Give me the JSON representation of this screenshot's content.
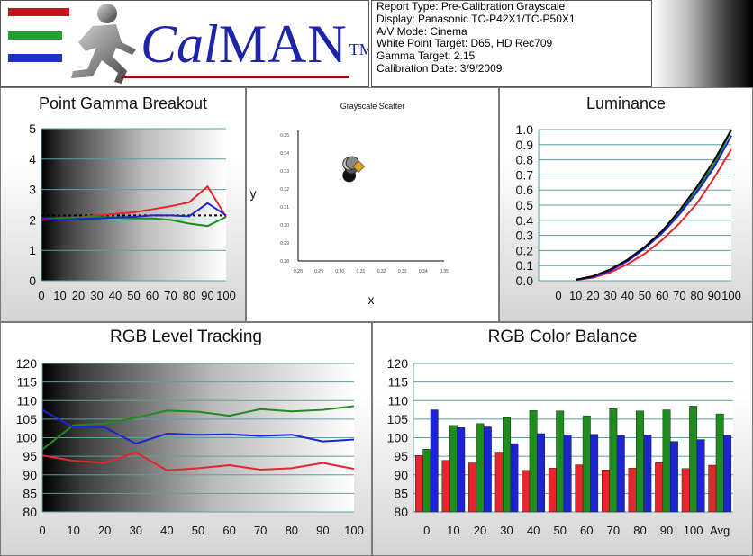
{
  "header": {
    "logo": {
      "brand_prefix": "Cal",
      "brand_suffix": "MAN",
      "trademark": "TM",
      "stripe_colors": [
        "#c0151b",
        "#22a22d",
        "#1f31b8"
      ],
      "brand_color": "#1e24a8"
    },
    "report_lines": [
      "Report Type: Pre-Calibration Grayscale",
      "Display: Panasonic TC-P42X1/TC-P50X1",
      "A/V Mode: Cinema",
      "White Point Target: D65, HD Rec709",
      "Gamma Target: 2.15",
      "Calibration Date: 3/9/2009"
    ]
  },
  "colors": {
    "red": "#e8242c",
    "green": "#1e8c1e",
    "blue": "#1c24d4",
    "grid": "#5aa0a0",
    "target": "#000000"
  },
  "chart_data": [
    {
      "id": "gamma",
      "type": "line",
      "title": "Point Gamma Breakout",
      "x": [
        0,
        10,
        20,
        30,
        40,
        50,
        60,
        70,
        80,
        90,
        100
      ],
      "ylim": [
        0,
        5
      ],
      "yticks": [
        0,
        1,
        2,
        3,
        4,
        5
      ],
      "series": [
        {
          "key": "red",
          "values": [
            2.0,
            2.05,
            2.08,
            2.15,
            2.2,
            2.25,
            2.35,
            2.45,
            2.58,
            3.1,
            2.1
          ]
        },
        {
          "key": "green",
          "values": [
            2.05,
            2.05,
            2.08,
            2.1,
            2.08,
            2.05,
            2.05,
            2.0,
            1.88,
            1.8,
            2.1
          ]
        },
        {
          "key": "blue",
          "values": [
            2.05,
            2.0,
            2.03,
            2.05,
            2.08,
            2.1,
            2.15,
            2.15,
            2.12,
            2.55,
            2.15
          ]
        }
      ],
      "target": 2.15
    },
    {
      "id": "scatter",
      "type": "scatter",
      "title": "Grayscale Scatter",
      "xlabel": "x",
      "ylabel": "y",
      "xticks": [
        "0.28",
        "0.29",
        "0.30",
        "0.31",
        "0.32",
        "0.33",
        "0.34",
        "0.35"
      ],
      "yticks": [
        "0.28",
        "0.29",
        "0.30",
        "0.31",
        "0.32",
        "0.33",
        "0.34",
        "0.35"
      ],
      "xlim": [
        0.28,
        0.35
      ],
      "ylim": [
        0.28,
        0.35
      ],
      "points": [
        {
          "x": 0.3045,
          "y": 0.3275,
          "color": "#111111"
        },
        {
          "x": 0.3055,
          "y": 0.332,
          "color": "#555555"
        },
        {
          "x": 0.3045,
          "y": 0.334,
          "color": "#bdbdbd"
        },
        {
          "x": 0.306,
          "y": 0.3345,
          "color": "#888888"
        },
        {
          "x": 0.309,
          "y": 0.3325,
          "color": "#e0a020",
          "shape": "diamond"
        }
      ]
    },
    {
      "id": "luminance",
      "type": "line",
      "title": "Luminance",
      "x": [
        10,
        20,
        30,
        40,
        50,
        60,
        70,
        80,
        90,
        100
      ],
      "ylim": [
        0,
        1
      ],
      "xticks": [
        0,
        10,
        20,
        30,
        40,
        50,
        60,
        70,
        80,
        90,
        100
      ],
      "yticks": [
        "0.0",
        "0.1",
        "0.2",
        "0.3",
        "0.4",
        "0.5",
        "0.6",
        "0.7",
        "0.8",
        "0.9",
        "1.0"
      ],
      "series": [
        {
          "key": "red",
          "values": [
            0.005,
            0.02,
            0.055,
            0.11,
            0.18,
            0.27,
            0.38,
            0.51,
            0.68,
            0.87
          ]
        },
        {
          "key": "green",
          "values": [
            0.007,
            0.027,
            0.07,
            0.135,
            0.22,
            0.325,
            0.455,
            0.605,
            0.77,
            0.995
          ]
        },
        {
          "key": "blue",
          "values": [
            0.006,
            0.025,
            0.067,
            0.13,
            0.215,
            0.315,
            0.44,
            0.585,
            0.75,
            0.96
          ]
        },
        {
          "key": "target",
          "values": [
            0.007,
            0.03,
            0.075,
            0.14,
            0.225,
            0.33,
            0.465,
            0.62,
            0.795,
            1.0
          ]
        }
      ]
    },
    {
      "id": "tracking",
      "type": "line",
      "title": "RGB Level Tracking",
      "x": [
        0,
        10,
        20,
        30,
        40,
        50,
        60,
        70,
        80,
        90,
        100
      ],
      "ylim": [
        80,
        120
      ],
      "yticks": [
        80,
        85,
        90,
        95,
        100,
        105,
        110,
        115,
        120
      ],
      "series": [
        {
          "key": "red",
          "values": [
            95.2,
            93.8,
            93.2,
            96.0,
            91.2,
            91.8,
            92.6,
            91.4,
            91.8,
            93.2,
            91.6
          ]
        },
        {
          "key": "green",
          "values": [
            96.8,
            103.4,
            103.8,
            105.4,
            107.3,
            107.0,
            105.9,
            107.7,
            107.1,
            107.5,
            108.5
          ]
        },
        {
          "key": "blue",
          "values": [
            107.5,
            102.8,
            102.8,
            98.4,
            101.1,
            100.8,
            100.9,
            100.5,
            100.8,
            99.0,
            99.5
          ]
        }
      ]
    },
    {
      "id": "balance",
      "type": "bar",
      "title": "RGB Color Balance",
      "categories": [
        "0",
        "10",
        "20",
        "30",
        "40",
        "50",
        "60",
        "70",
        "80",
        "90",
        "100",
        "Avg"
      ],
      "ylim": [
        80,
        120
      ],
      "yticks": [
        80,
        85,
        90,
        95,
        100,
        105,
        110,
        115,
        120
      ],
      "series": [
        {
          "key": "red",
          "values": [
            95.2,
            93.9,
            93.2,
            96.1,
            91.2,
            91.8,
            92.7,
            91.3,
            91.8,
            93.3,
            91.7,
            92.6
          ]
        },
        {
          "key": "green",
          "values": [
            96.9,
            103.3,
            103.8,
            105.4,
            107.3,
            107.2,
            105.9,
            107.8,
            107.2,
            107.5,
            108.5,
            106.4
          ]
        },
        {
          "key": "blue",
          "values": [
            107.5,
            102.7,
            102.9,
            98.4,
            101.1,
            100.8,
            100.9,
            100.6,
            100.8,
            99.0,
            99.5,
            100.6
          ]
        }
      ]
    }
  ]
}
